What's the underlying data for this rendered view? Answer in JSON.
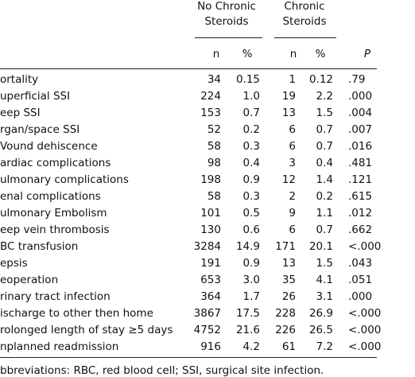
{
  "header": {
    "groups": [
      [
        "No Chronic",
        "Steroids"
      ],
      [
        "Chronic",
        "Steroids"
      ]
    ],
    "columns": [
      "n",
      "%",
      "n",
      "%",
      "P"
    ]
  },
  "table": {
    "rows": [
      [
        "ortality",
        "34",
        "0.15",
        "1",
        "0.12",
        ".79"
      ],
      [
        "uperficial SSI",
        "224",
        "1.0",
        "19",
        "2.2",
        ".000"
      ],
      [
        "eep SSI",
        "153",
        "0.7",
        "13",
        "1.5",
        ".004"
      ],
      [
        "rgan/space SSI",
        "52",
        "0.2",
        "6",
        "0.7",
        ".007"
      ],
      [
        "Vound dehiscence",
        "58",
        "0.3",
        "6",
        "0.7",
        ".016"
      ],
      [
        "ardiac complications",
        "98",
        "0.4",
        "3",
        "0.4",
        ".481"
      ],
      [
        "ulmonary complications",
        "198",
        "0.9",
        "12",
        "1.4",
        ".121"
      ],
      [
        "enal complications",
        "58",
        "0.3",
        "2",
        "0.2",
        ".615"
      ],
      [
        "ulmonary Embolism",
        "101",
        "0.5",
        "9",
        "1.1",
        ".012"
      ],
      [
        "eep vein thrombosis",
        "130",
        "0.6",
        "6",
        "0.7",
        ".662"
      ],
      [
        "BC transfusion",
        "3284",
        "14.9",
        "171",
        "20.1",
        "<.000"
      ],
      [
        "epsis",
        "191",
        "0.9",
        "13",
        "1.5",
        ".043"
      ],
      [
        "eoperation",
        "653",
        "3.0",
        "35",
        "4.1",
        ".051"
      ],
      [
        "rinary tract infection",
        "364",
        "1.7",
        "26",
        "3.1",
        ".000"
      ],
      [
        "ischarge to other then home",
        "3867",
        "17.5",
        "228",
        "26.9",
        "<.000"
      ],
      [
        "rolonged length of stay ≥5 days",
        "4752",
        "21.6",
        "226",
        "26.5",
        "<.000"
      ],
      [
        "nplanned readmission",
        "916",
        "4.2",
        "61",
        "7.2",
        "<.000"
      ]
    ]
  },
  "footnote": "bbreviations: RBC, red blood cell; SSI, surgical site infection."
}
